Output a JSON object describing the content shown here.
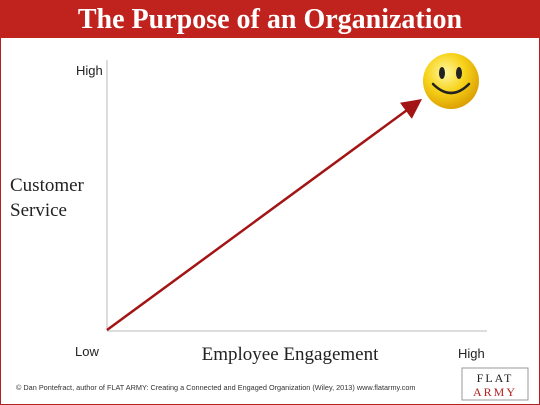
{
  "header": {
    "title": "The Purpose of an Organization"
  },
  "axes": {
    "y_high": "High",
    "y_label_line1": "Customer",
    "y_label_line2": "Service",
    "x_low": "Low",
    "x_label": "Employee Engagement",
    "x_high": "High"
  },
  "footer": {
    "credit": "© Dan Pontefract, author of FLAT ARMY: Creating a Connected and Engaged Organization (Wiley, 2013) www.flatarmy.com",
    "logo_line1": "FLAT",
    "logo_line2": "ARMY"
  }
}
